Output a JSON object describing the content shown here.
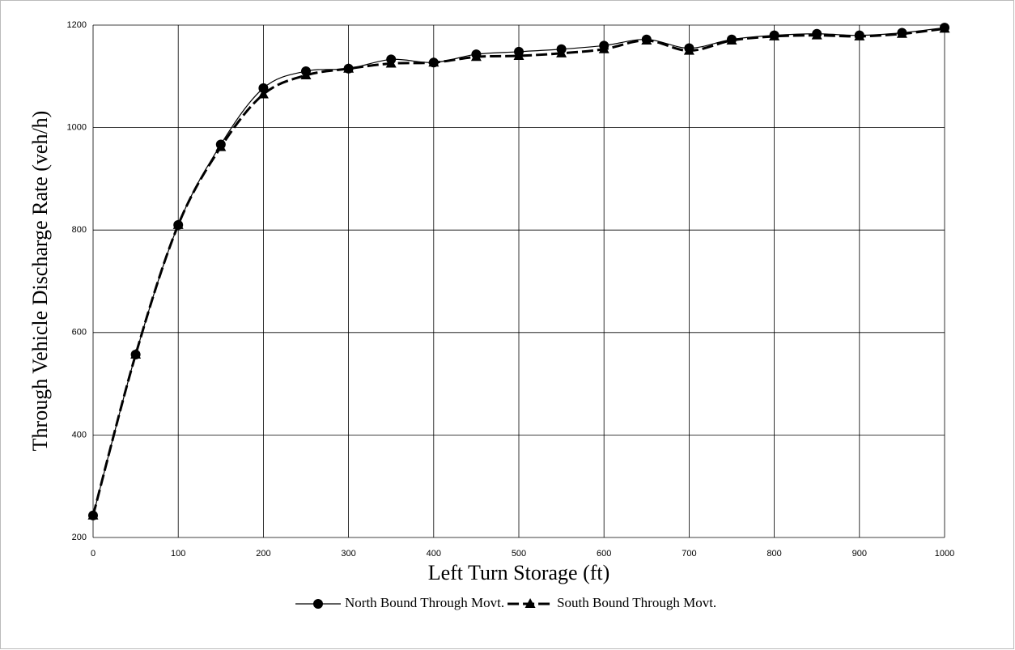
{
  "chart_data": {
    "type": "line",
    "xlabel": "Left Turn Storage (ft)",
    "ylabel": "Through Vehicle Discharge Rate (veh/h)",
    "x": [
      0,
      50,
      100,
      150,
      200,
      250,
      300,
      350,
      400,
      450,
      500,
      550,
      600,
      650,
      700,
      750,
      800,
      850,
      900,
      950,
      1000
    ],
    "series": [
      {
        "name": "North Bound Through Movt.",
        "color": "#000000",
        "marker": "circle",
        "dashed": false,
        "values": [
          243,
          557,
          810,
          967,
          1077,
          1110,
          1115,
          1133,
          1127,
          1143,
          1148,
          1153,
          1160,
          1172,
          1155,
          1172,
          1180,
          1183,
          1180,
          1185,
          1195
        ]
      },
      {
        "name": "South Bound Through Movt.",
        "color": "#000000",
        "marker": "triangle",
        "dashed": true,
        "values": [
          243,
          557,
          810,
          962,
          1065,
          1102,
          1115,
          1125,
          1127,
          1138,
          1140,
          1145,
          1153,
          1170,
          1150,
          1170,
          1178,
          1180,
          1178,
          1183,
          1193
        ]
      }
    ],
    "xlim": [
      0,
      1000
    ],
    "xticks": [
      0,
      100,
      200,
      300,
      400,
      500,
      600,
      700,
      800,
      900,
      1000
    ],
    "ylim": [
      200,
      1200
    ],
    "yticks": [
      200,
      400,
      600,
      800,
      1000,
      1200
    ],
    "grid": true,
    "legend": "bottom"
  }
}
